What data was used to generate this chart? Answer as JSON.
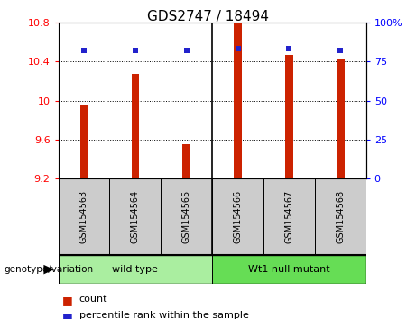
{
  "title": "GDS2747 / 18494",
  "samples": [
    "GSM154563",
    "GSM154564",
    "GSM154565",
    "GSM154566",
    "GSM154567",
    "GSM154568"
  ],
  "bar_values": [
    9.95,
    10.27,
    9.55,
    10.8,
    10.47,
    10.43
  ],
  "percentile_values": [
    82,
    82,
    82,
    83,
    83,
    82
  ],
  "y_min": 9.2,
  "y_max": 10.8,
  "y_ticks": [
    9.2,
    9.6,
    10.0,
    10.4,
    10.8
  ],
  "y2_ticks": [
    0,
    25,
    50,
    75,
    100
  ],
  "bar_color": "#cc2200",
  "dot_color": "#2222cc",
  "bar_bottom": 9.2,
  "bar_width": 0.15,
  "groups": [
    {
      "label": "wild type",
      "indices": [
        0,
        1,
        2
      ],
      "color": "#aaeea0"
    },
    {
      "label": "Wt1 null mutant",
      "indices": [
        3,
        4,
        5
      ],
      "color": "#66dd55"
    }
  ],
  "group_label": "genotype/variation",
  "legend_count_label": "count",
  "legend_pct_label": "percentile rank within the sample",
  "plot_bg": "#ffffff",
  "cell_bg": "#cccccc",
  "title_fontsize": 11,
  "tick_fontsize": 8,
  "sample_fontsize": 7
}
